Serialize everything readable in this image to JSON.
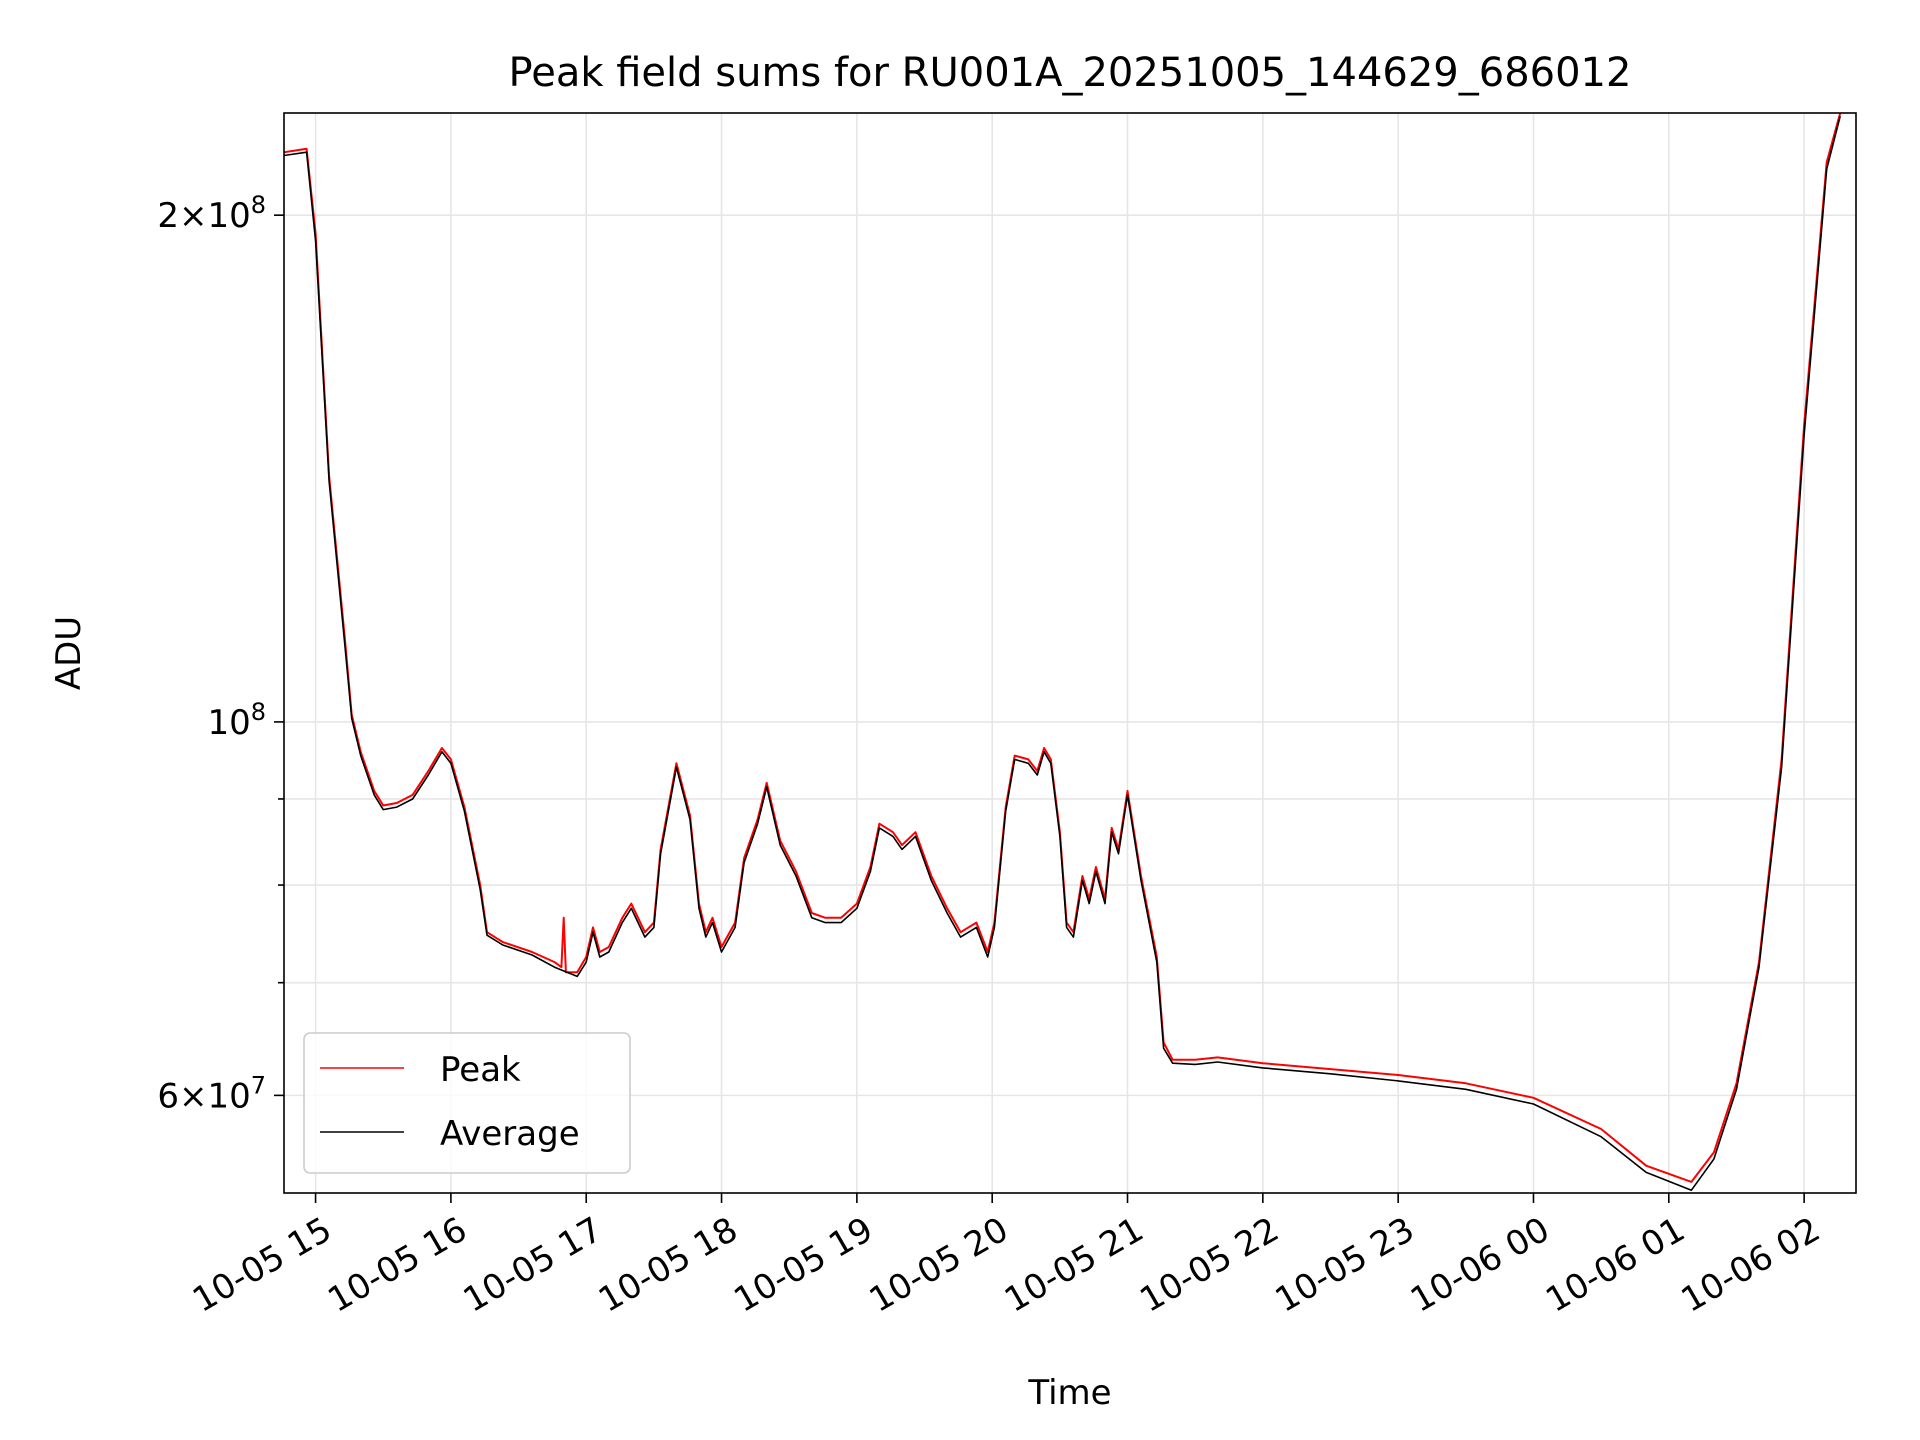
{
  "chart_data": {
    "type": "line",
    "title": "Peak field sums for RU001A_20251005_144629_686012",
    "xlabel": "Time",
    "ylabel": "ADU",
    "yscale": "log",
    "grid": true,
    "legend_placement": "lower-left",
    "xlim": [
      "2025-10-05 14:46",
      "2025-10-06 02:23"
    ],
    "ylim": [
      52500000,
      230000000
    ],
    "x_ticks": [
      {
        "t": "2025-10-05 15:00",
        "label": "10-05 15"
      },
      {
        "t": "2025-10-05 16:00",
        "label": "10-05 16"
      },
      {
        "t": "2025-10-05 17:00",
        "label": "10-05 17"
      },
      {
        "t": "2025-10-05 18:00",
        "label": "10-05 18"
      },
      {
        "t": "2025-10-05 19:00",
        "label": "10-05 19"
      },
      {
        "t": "2025-10-05 20:00",
        "label": "10-05 20"
      },
      {
        "t": "2025-10-05 21:00",
        "label": "10-05 21"
      },
      {
        "t": "2025-10-05 22:00",
        "label": "10-05 22"
      },
      {
        "t": "2025-10-05 23:00",
        "label": "10-05 23"
      },
      {
        "t": "2025-10-06 00:00",
        "label": "10-06 00"
      },
      {
        "t": "2025-10-06 01:00",
        "label": "10-06 01"
      },
      {
        "t": "2025-10-06 02:00",
        "label": "10-06 02"
      }
    ],
    "y_major_ticks": [
      {
        "value": 60000000,
        "base": "6",
        "exp": "7"
      },
      {
        "value": 100000000,
        "base": "",
        "exp": "8"
      },
      {
        "value": 200000000,
        "base": "2",
        "exp": "8"
      }
    ],
    "y_minor_values": [
      70000000,
      80000000,
      90000000
    ],
    "series": [
      {
        "name": "Peak",
        "color": "#ff0000",
        "points": [
          [
            "2025-10-05 14:46",
            218000000
          ],
          [
            "2025-10-05 14:56",
            219000000
          ],
          [
            "2025-10-05 15:00",
            195000000
          ],
          [
            "2025-10-05 15:06",
            140000000
          ],
          [
            "2025-10-05 15:13",
            112000000
          ],
          [
            "2025-10-05 15:16",
            101000000
          ],
          [
            "2025-10-05 15:20",
            96000000
          ],
          [
            "2025-10-05 15:26",
            91000000
          ],
          [
            "2025-10-05 15:30",
            89200000
          ],
          [
            "2025-10-05 15:36",
            89500000
          ],
          [
            "2025-10-05 15:43",
            90500000
          ],
          [
            "2025-10-05 15:50",
            93500000
          ],
          [
            "2025-10-05 15:56",
            96500000
          ],
          [
            "2025-10-05 16:00",
            95000000
          ],
          [
            "2025-10-05 16:06",
            89000000
          ],
          [
            "2025-10-05 16:13",
            80000000
          ],
          [
            "2025-10-05 16:16",
            75000000
          ],
          [
            "2025-10-05 16:23",
            74000000
          ],
          [
            "2025-10-05 16:36",
            73000000
          ],
          [
            "2025-10-05 16:46",
            72000000
          ],
          [
            "2025-10-05 16:49",
            71500000
          ],
          [
            "2025-10-05 16:50",
            76500000
          ],
          [
            "2025-10-05 16:51",
            71000000
          ],
          [
            "2025-10-05 16:56",
            71000000
          ],
          [
            "2025-10-05 17:00",
            72500000
          ],
          [
            "2025-10-05 17:03",
            75500000
          ],
          [
            "2025-10-05 17:06",
            73000000
          ],
          [
            "2025-10-05 17:10",
            73500000
          ],
          [
            "2025-10-05 17:16",
            76500000
          ],
          [
            "2025-10-05 17:20",
            78000000
          ],
          [
            "2025-10-05 17:26",
            75000000
          ],
          [
            "2025-10-05 17:30",
            76000000
          ],
          [
            "2025-10-05 17:33",
            84000000
          ],
          [
            "2025-10-05 17:40",
            94500000
          ],
          [
            "2025-10-05 17:46",
            88000000
          ],
          [
            "2025-10-05 17:50",
            78000000
          ],
          [
            "2025-10-05 17:53",
            75000000
          ],
          [
            "2025-10-05 17:56",
            76500000
          ],
          [
            "2025-10-05 18:00",
            73500000
          ],
          [
            "2025-10-05 18:06",
            76000000
          ],
          [
            "2025-10-05 18:10",
            83000000
          ],
          [
            "2025-10-05 18:16",
            87500000
          ],
          [
            "2025-10-05 18:20",
            92000000
          ],
          [
            "2025-10-05 18:26",
            85000000
          ],
          [
            "2025-10-05 18:33",
            81500000
          ],
          [
            "2025-10-05 18:40",
            77000000
          ],
          [
            "2025-10-05 18:46",
            76500000
          ],
          [
            "2025-10-05 18:53",
            76500000
          ],
          [
            "2025-10-05 19:00",
            78000000
          ],
          [
            "2025-10-05 19:06",
            82000000
          ],
          [
            "2025-10-05 19:10",
            87000000
          ],
          [
            "2025-10-05 19:16",
            86000000
          ],
          [
            "2025-10-05 19:20",
            84500000
          ],
          [
            "2025-10-05 19:26",
            86000000
          ],
          [
            "2025-10-05 19:33",
            81000000
          ],
          [
            "2025-10-05 19:40",
            77500000
          ],
          [
            "2025-10-05 19:46",
            75000000
          ],
          [
            "2025-10-05 19:53",
            76000000
          ],
          [
            "2025-10-05 19:58",
            73000000
          ],
          [
            "2025-10-05 20:01",
            76000000
          ],
          [
            "2025-10-05 20:06",
            89000000
          ],
          [
            "2025-10-05 20:10",
            95500000
          ],
          [
            "2025-10-05 20:16",
            95000000
          ],
          [
            "2025-10-05 20:20",
            93500000
          ],
          [
            "2025-10-05 20:23",
            96500000
          ],
          [
            "2025-10-05 20:26",
            95000000
          ],
          [
            "2025-10-05 20:30",
            86000000
          ],
          [
            "2025-10-05 20:33",
            76000000
          ],
          [
            "2025-10-05 20:36",
            75000000
          ],
          [
            "2025-10-05 20:40",
            81000000
          ],
          [
            "2025-10-05 20:43",
            78500000
          ],
          [
            "2025-10-05 20:46",
            82000000
          ],
          [
            "2025-10-05 20:50",
            78500000
          ],
          [
            "2025-10-05 20:53",
            86500000
          ],
          [
            "2025-10-05 20:56",
            84000000
          ],
          [
            "2025-10-05 21:00",
            91000000
          ],
          [
            "2025-10-05 21:06",
            81000000
          ],
          [
            "2025-10-05 21:13",
            72500000
          ],
          [
            "2025-10-05 21:16",
            64500000
          ],
          [
            "2025-10-05 21:20",
            63000000
          ],
          [
            "2025-10-05 21:30",
            63000000
          ],
          [
            "2025-10-05 21:40",
            63200000
          ],
          [
            "2025-10-05 22:00",
            62700000
          ],
          [
            "2025-10-05 22:30",
            62200000
          ],
          [
            "2025-10-05 23:00",
            61700000
          ],
          [
            "2025-10-05 23:30",
            61000000
          ],
          [
            "2025-10-06 00:00",
            59800000
          ],
          [
            "2025-10-06 00:30",
            57300000
          ],
          [
            "2025-10-06 00:50",
            54500000
          ],
          [
            "2025-10-06 01:10",
            53300000
          ],
          [
            "2025-10-06 01:20",
            55500000
          ],
          [
            "2025-10-06 01:30",
            61000000
          ],
          [
            "2025-10-06 01:40",
            72000000
          ],
          [
            "2025-10-06 01:50",
            95000000
          ],
          [
            "2025-10-06 02:00",
            150000000
          ],
          [
            "2025-10-06 02:10",
            215000000
          ],
          [
            "2025-10-06 02:16",
            230000000
          ]
        ]
      },
      {
        "name": "Average",
        "color": "#000000",
        "points": [
          [
            "2025-10-05 14:46",
            217000000
          ],
          [
            "2025-10-05 14:56",
            218000000
          ],
          [
            "2025-10-05 15:00",
            193000000
          ],
          [
            "2025-10-05 15:06",
            139000000
          ],
          [
            "2025-10-05 15:13",
            111000000
          ],
          [
            "2025-10-05 15:16",
            100500000
          ],
          [
            "2025-10-05 15:20",
            95500000
          ],
          [
            "2025-10-05 15:26",
            90500000
          ],
          [
            "2025-10-05 15:30",
            88700000
          ],
          [
            "2025-10-05 15:36",
            89000000
          ],
          [
            "2025-10-05 15:43",
            90000000
          ],
          [
            "2025-10-05 15:50",
            93000000
          ],
          [
            "2025-10-05 15:56",
            96000000
          ],
          [
            "2025-10-05 16:00",
            94500000
          ],
          [
            "2025-10-05 16:06",
            88500000
          ],
          [
            "2025-10-05 16:13",
            79500000
          ],
          [
            "2025-10-05 16:16",
            74700000
          ],
          [
            "2025-10-05 16:23",
            73700000
          ],
          [
            "2025-10-05 16:36",
            72700000
          ],
          [
            "2025-10-05 16:46",
            71500000
          ],
          [
            "2025-10-05 16:56",
            70600000
          ],
          [
            "2025-10-05 17:00",
            72000000
          ],
          [
            "2025-10-05 17:03",
            75000000
          ],
          [
            "2025-10-05 17:06",
            72500000
          ],
          [
            "2025-10-05 17:10",
            73000000
          ],
          [
            "2025-10-05 17:16",
            76000000
          ],
          [
            "2025-10-05 17:20",
            77500000
          ],
          [
            "2025-10-05 17:26",
            74500000
          ],
          [
            "2025-10-05 17:30",
            75500000
          ],
          [
            "2025-10-05 17:33",
            83500000
          ],
          [
            "2025-10-05 17:40",
            94000000
          ],
          [
            "2025-10-05 17:46",
            87500000
          ],
          [
            "2025-10-05 17:50",
            77500000
          ],
          [
            "2025-10-05 17:53",
            74500000
          ],
          [
            "2025-10-05 17:56",
            76000000
          ],
          [
            "2025-10-05 18:00",
            73000000
          ],
          [
            "2025-10-05 18:06",
            75500000
          ],
          [
            "2025-10-05 18:10",
            82500000
          ],
          [
            "2025-10-05 18:16",
            87000000
          ],
          [
            "2025-10-05 18:20",
            91500000
          ],
          [
            "2025-10-05 18:26",
            84500000
          ],
          [
            "2025-10-05 18:33",
            81000000
          ],
          [
            "2025-10-05 18:40",
            76500000
          ],
          [
            "2025-10-05 18:46",
            76000000
          ],
          [
            "2025-10-05 18:53",
            76000000
          ],
          [
            "2025-10-05 19:00",
            77500000
          ],
          [
            "2025-10-05 19:06",
            81500000
          ],
          [
            "2025-10-05 19:10",
            86500000
          ],
          [
            "2025-10-05 19:16",
            85500000
          ],
          [
            "2025-10-05 19:20",
            84000000
          ],
          [
            "2025-10-05 19:26",
            85500000
          ],
          [
            "2025-10-05 19:33",
            80500000
          ],
          [
            "2025-10-05 19:40",
            77000000
          ],
          [
            "2025-10-05 19:46",
            74500000
          ],
          [
            "2025-10-05 19:53",
            75500000
          ],
          [
            "2025-10-05 19:58",
            72500000
          ],
          [
            "2025-10-05 20:01",
            75500000
          ],
          [
            "2025-10-05 20:06",
            88500000
          ],
          [
            "2025-10-05 20:10",
            95000000
          ],
          [
            "2025-10-05 20:16",
            94500000
          ],
          [
            "2025-10-05 20:20",
            93000000
          ],
          [
            "2025-10-05 20:23",
            96000000
          ],
          [
            "2025-10-05 20:26",
            94500000
          ],
          [
            "2025-10-05 20:30",
            85500000
          ],
          [
            "2025-10-05 20:33",
            75500000
          ],
          [
            "2025-10-05 20:36",
            74500000
          ],
          [
            "2025-10-05 20:40",
            80500000
          ],
          [
            "2025-10-05 20:43",
            78000000
          ],
          [
            "2025-10-05 20:46",
            81500000
          ],
          [
            "2025-10-05 20:50",
            78000000
          ],
          [
            "2025-10-05 20:53",
            86000000
          ],
          [
            "2025-10-05 20:56",
            83500000
          ],
          [
            "2025-10-05 21:00",
            90500000
          ],
          [
            "2025-10-05 21:06",
            80500000
          ],
          [
            "2025-10-05 21:13",
            72000000
          ],
          [
            "2025-10-05 21:16",
            64000000
          ],
          [
            "2025-10-05 21:20",
            62700000
          ],
          [
            "2025-10-05 21:30",
            62600000
          ],
          [
            "2025-10-05 21:40",
            62800000
          ],
          [
            "2025-10-05 22:00",
            62300000
          ],
          [
            "2025-10-05 22:30",
            61800000
          ],
          [
            "2025-10-05 23:00",
            61200000
          ],
          [
            "2025-10-05 23:30",
            60500000
          ],
          [
            "2025-10-06 00:00",
            59300000
          ],
          [
            "2025-10-06 00:30",
            56700000
          ],
          [
            "2025-10-06 00:50",
            54000000
          ],
          [
            "2025-10-06 01:10",
            52700000
          ],
          [
            "2025-10-06 01:20",
            55000000
          ],
          [
            "2025-10-06 01:30",
            60500000
          ],
          [
            "2025-10-06 01:40",
            71500000
          ],
          [
            "2025-10-06 01:50",
            94000000
          ],
          [
            "2025-10-06 02:00",
            148000000
          ],
          [
            "2025-10-06 02:10",
            213000000
          ],
          [
            "2025-10-06 02:16",
            229000000
          ]
        ]
      }
    ]
  }
}
